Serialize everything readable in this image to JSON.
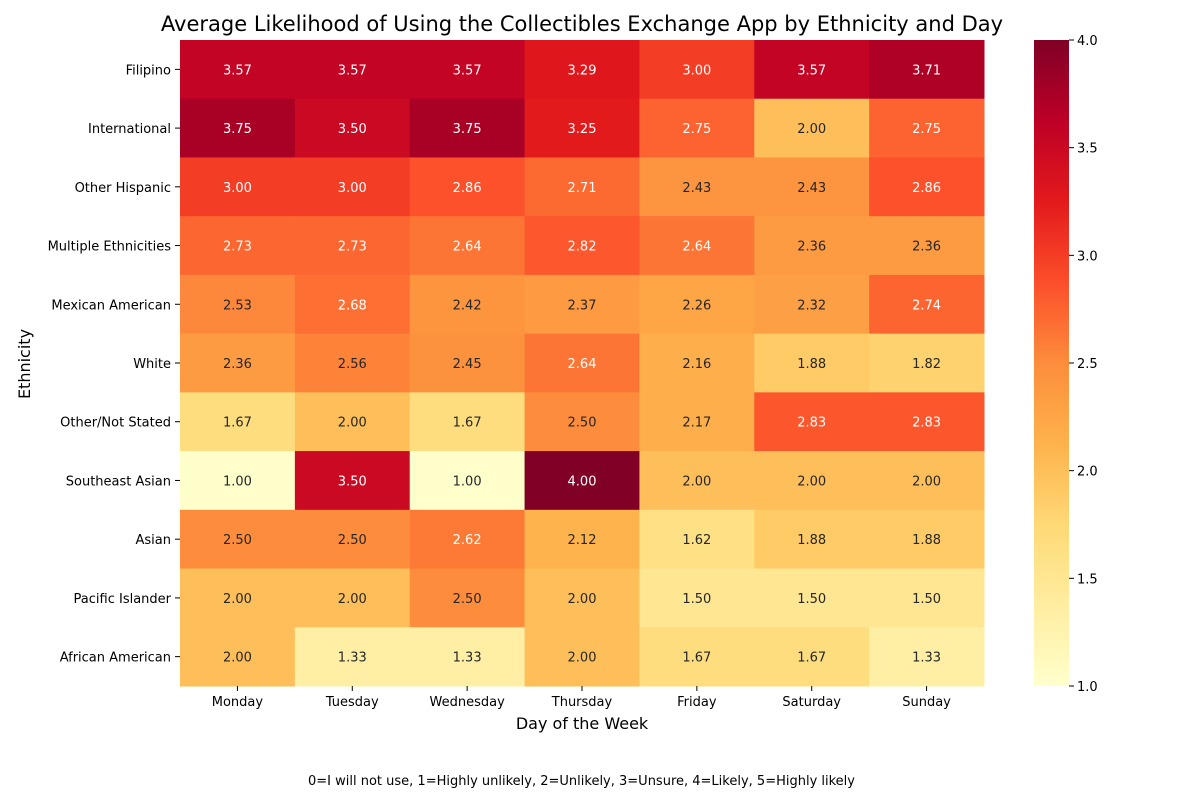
{
  "chart_data": {
    "type": "heatmap",
    "title": "Average Likelihood of Using the Collectibles Exchange App by Ethnicity and Day",
    "xlabel": "Day of the Week",
    "ylabel": "Ethnicity",
    "x": [
      "Monday",
      "Tuesday",
      "Wednesday",
      "Thursday",
      "Friday",
      "Saturday",
      "Sunday"
    ],
    "y": [
      "Filipino",
      "International",
      "Other Hispanic",
      "Multiple Ethnicities",
      "Mexican American",
      "White",
      "Other/Not Stated",
      "Southeast Asian",
      "Asian",
      "Pacific Islander",
      "African American"
    ],
    "values": [
      [
        3.57,
        3.57,
        3.57,
        3.29,
        3.0,
        3.57,
        3.71
      ],
      [
        3.75,
        3.5,
        3.75,
        3.25,
        2.75,
        2.0,
        2.75
      ],
      [
        3.0,
        3.0,
        2.86,
        2.71,
        2.43,
        2.43,
        2.86
      ],
      [
        2.73,
        2.73,
        2.64,
        2.82,
        2.64,
        2.36,
        2.36
      ],
      [
        2.53,
        2.68,
        2.42,
        2.37,
        2.26,
        2.32,
        2.74
      ],
      [
        2.36,
        2.56,
        2.45,
        2.64,
        2.16,
        1.88,
        1.82
      ],
      [
        1.67,
        2.0,
        1.67,
        2.5,
        2.17,
        2.83,
        2.83
      ],
      [
        1.0,
        3.5,
        1.0,
        4.0,
        2.0,
        2.0,
        2.0
      ],
      [
        2.5,
        2.5,
        2.62,
        2.12,
        1.62,
        1.88,
        1.88
      ],
      [
        2.0,
        2.0,
        2.5,
        2.0,
        1.5,
        1.5,
        1.5
      ],
      [
        2.0,
        1.33,
        1.33,
        2.0,
        1.67,
        1.67,
        1.33
      ]
    ],
    "colormap": "YlOrRd",
    "vmin": 1.0,
    "vmax": 4.0,
    "colorbar_ticks": [
      "1.0",
      "1.5",
      "2.0",
      "2.5",
      "3.0",
      "3.5",
      "4.0"
    ],
    "annotations": true,
    "grid": false
  },
  "footnote": "0=I will not use, 1=Highly unlikely, 2=Unlikely, 3=Unsure, 4=Likely, 5=Highly likely"
}
